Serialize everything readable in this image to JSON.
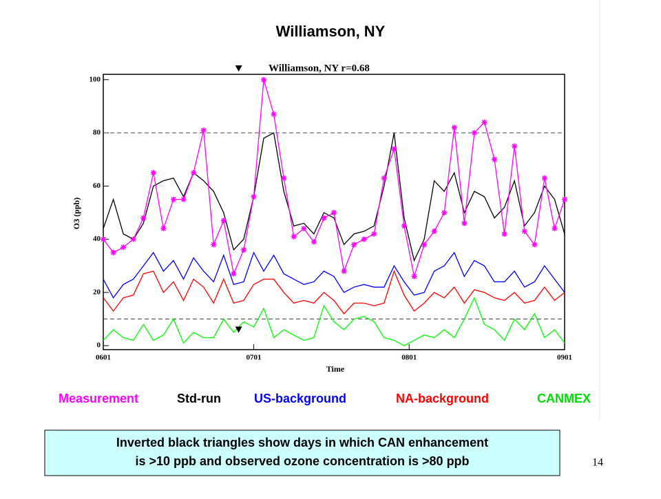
{
  "chart_data": {
    "type": "line",
    "title": "Williamson, NY",
    "subtitle": "Williamson,  NY   r=0.68",
    "x_label": "Time",
    "y_label": "O3 (ppb)",
    "x": [
      0,
      2,
      4,
      6,
      8,
      10,
      12,
      14,
      16,
      18,
      20,
      22,
      24,
      26,
      28,
      30,
      32,
      34,
      36,
      38,
      40,
      42,
      44,
      46,
      48,
      50,
      52,
      54,
      56,
      58,
      60,
      62,
      64,
      66,
      68,
      70,
      72,
      74,
      76,
      78,
      80,
      82,
      84,
      86,
      88,
      90,
      92
    ],
    "xlim": [
      0,
      92
    ],
    "xticks": [
      {
        "value": 0,
        "label": "0601"
      },
      {
        "value": 30,
        "label": "0701"
      },
      {
        "value": 61,
        "label": "0801"
      },
      {
        "value": 92,
        "label": "0901"
      }
    ],
    "ylim": [
      -1.5,
      102
    ],
    "yticks": [
      0,
      20,
      40,
      60,
      80,
      100
    ],
    "hlines": [
      80,
      10
    ],
    "triangle_x": 27,
    "series": [
      {
        "name": "Measurement",
        "color": "#ff00ff",
        "marker": true,
        "values": [
          40,
          35,
          37,
          40,
          48,
          65,
          44,
          55,
          55,
          65,
          81,
          38,
          47,
          27,
          36,
          56,
          100,
          87,
          63,
          41,
          44,
          39,
          48,
          50,
          28,
          38,
          40,
          42,
          63,
          74,
          45,
          26,
          38,
          43,
          50,
          82,
          46,
          80,
          84,
          70,
          42,
          75,
          43,
          38,
          63,
          44,
          55
        ]
      },
      {
        "name": "Std-run",
        "color": "#000000",
        "values": [
          44,
          55,
          42,
          40,
          46,
          60,
          62,
          63,
          56,
          65,
          62,
          58,
          50,
          36,
          40,
          56,
          78,
          80,
          58,
          45,
          46,
          42,
          50,
          48,
          38,
          42,
          43,
          45,
          60,
          80,
          48,
          32,
          40,
          62,
          58,
          65,
          50,
          58,
          56,
          48,
          52,
          62,
          45,
          50,
          60,
          55,
          42
        ]
      },
      {
        "name": "US-background",
        "color": "#0000ff",
        "values": [
          25,
          18,
          23,
          25,
          30,
          35,
          28,
          32,
          25,
          33,
          28,
          24,
          34,
          23,
          24,
          35,
          28,
          34,
          27,
          25,
          23,
          24,
          28,
          26,
          20,
          22,
          23,
          22,
          22,
          30,
          24,
          19,
          20,
          28,
          30,
          35,
          26,
          32,
          30,
          24,
          24,
          28,
          22,
          24,
          30,
          25,
          20
        ]
      },
      {
        "name": "NA-background",
        "color": "#ff0000",
        "values": [
          18,
          13,
          18,
          19,
          27,
          28,
          20,
          24,
          17,
          25,
          22,
          16,
          25,
          16,
          17,
          23,
          25,
          25,
          20,
          16,
          17,
          16,
          20,
          17,
          12,
          16,
          16,
          15,
          16,
          28,
          19,
          13,
          16,
          20,
          18,
          22,
          16,
          21,
          20,
          18,
          17,
          20,
          16,
          17,
          22,
          17,
          20
        ]
      },
      {
        "name": "CANMEX",
        "color": "#00ff00",
        "values": [
          2,
          6,
          3,
          2,
          8,
          2,
          4,
          10,
          1,
          5,
          3,
          3,
          10,
          5,
          9,
          7,
          14,
          3,
          6,
          4,
          2,
          3,
          15,
          9,
          6,
          10,
          11,
          9,
          3,
          2,
          0,
          2,
          4,
          3,
          6,
          3,
          10,
          18,
          8,
          6,
          2,
          10,
          6,
          12,
          3,
          6,
          1
        ]
      }
    ],
    "note": [
      "Inverted black triangles show days in which CAN enhancement",
      "is >10 ppb and observed ozone concentration is >80 ppb"
    ]
  },
  "page_number": "14"
}
